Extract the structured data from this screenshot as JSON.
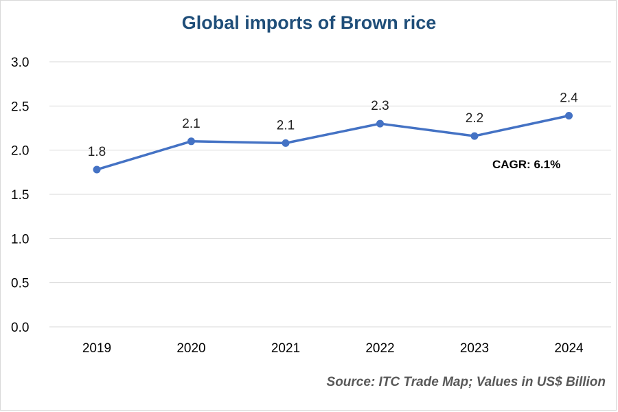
{
  "chart_data": {
    "type": "line",
    "title": "Global imports of Brown rice",
    "categories": [
      "2019",
      "2020",
      "2021",
      "2022",
      "2023",
      "2024"
    ],
    "series": [
      {
        "values": [
          1.78,
          2.1,
          2.08,
          2.3,
          2.16,
          2.39
        ],
        "data_labels": [
          "1.8",
          "2.1",
          "2.1",
          "2.3",
          "2.2",
          "2.4"
        ],
        "color": "#4472c4"
      }
    ],
    "y_ticks": [
      "0.0",
      "0.5",
      "1.0",
      "1.5",
      "2.0",
      "2.5",
      "3.0"
    ],
    "ylim": [
      0,
      3.0
    ],
    "grid": true,
    "annotation": "CAGR: 6.1%",
    "source": "Source: ITC Trade Map; Values in US$ Billion"
  }
}
